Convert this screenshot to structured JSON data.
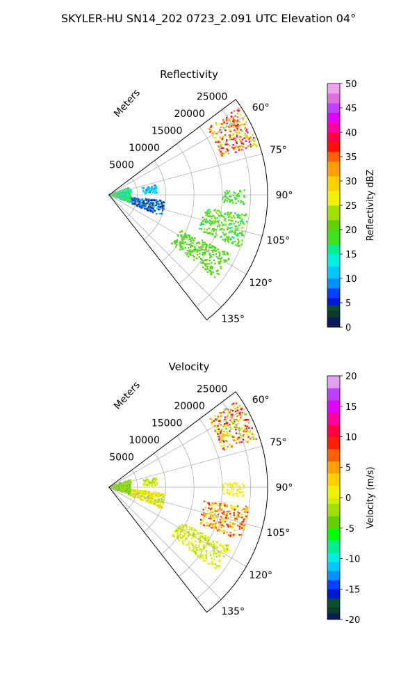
{
  "figure_title": "SKYLER-HU  SN14_202  0723_2.091 UTC Elevation 04°",
  "chart_data": [
    {
      "type": "polar-sector-heatmap",
      "title": "Reflectivity",
      "range_label": "Meters",
      "range_ticks": [
        5000,
        10000,
        15000,
        20000,
        25000
      ],
      "range_max": 28000,
      "azimuth_range_deg": [
        53,
        142
      ],
      "azimuth_ticks": [
        "60°",
        "75°",
        "90°",
        "105°",
        "120°",
        "135°"
      ],
      "azimuth_tick_values": [
        60,
        75,
        90,
        105,
        120,
        135
      ],
      "grid": true,
      "colorbar": {
        "label": "Reflectivity dBZ",
        "min": 0,
        "max": 50,
        "ticks": [
          "0",
          "5",
          "10",
          "15",
          "20",
          "25",
          "30",
          "35",
          "40",
          "45",
          "50"
        ]
      },
      "echo_regions": [
        {
          "az": [
            56,
            72
          ],
          "r": [
            21000,
            27500
          ],
          "value_range": [
            22,
            44
          ]
        },
        {
          "az": [
            70,
            110
          ],
          "r": [
            0,
            4000
          ],
          "value_range": [
            12,
            20
          ]
        },
        {
          "az": [
            78,
            88
          ],
          "r": [
            6000,
            8500
          ],
          "value_range": [
            8,
            15
          ]
        },
        {
          "az": [
            96,
            112
          ],
          "r": [
            4000,
            10000
          ],
          "value_range": [
            2,
            12
          ]
        },
        {
          "az": [
            88,
            94
          ],
          "r": [
            20000,
            24000
          ],
          "value_range": [
            18,
            20
          ]
        },
        {
          "az": [
            98,
            112
          ],
          "r": [
            17000,
            25000
          ],
          "value_range": [
            15,
            24
          ]
        },
        {
          "az": [
            116,
            128
          ],
          "r": [
            14000,
            24000
          ],
          "value_range": [
            18,
            22
          ]
        }
      ]
    },
    {
      "type": "polar-sector-heatmap",
      "title": "Velocity",
      "range_label": "Meters",
      "range_ticks": [
        5000,
        10000,
        15000,
        20000,
        25000
      ],
      "range_max": 28000,
      "azimuth_range_deg": [
        53,
        142
      ],
      "azimuth_ticks": [
        "60°",
        "75°",
        "90°",
        "105°",
        "120°",
        "135°"
      ],
      "azimuth_tick_values": [
        60,
        75,
        90,
        105,
        120,
        135
      ],
      "grid": true,
      "colorbar": {
        "label": "Velocity (m/s)",
        "min": -20,
        "max": 20,
        "ticks": [
          "-20",
          "-15",
          "-10",
          "-5",
          "0",
          "5",
          "10",
          "15",
          "20"
        ]
      },
      "echo_regions": [
        {
          "az": [
            56,
            72
          ],
          "r": [
            21000,
            27500
          ],
          "value_range": [
            -4,
            12
          ]
        },
        {
          "az": [
            70,
            110
          ],
          "r": [
            0,
            4000
          ],
          "value_range": [
            -4,
            -2
          ]
        },
        {
          "az": [
            78,
            88
          ],
          "r": [
            6000,
            8500
          ],
          "value_range": [
            -3,
            1
          ]
        },
        {
          "az": [
            96,
            112
          ],
          "r": [
            4000,
            10000
          ],
          "value_range": [
            -3,
            4
          ]
        },
        {
          "az": [
            88,
            94
          ],
          "r": [
            20000,
            24000
          ],
          "value_range": [
            0,
            2
          ]
        },
        {
          "az": [
            98,
            112
          ],
          "r": [
            17000,
            25000
          ],
          "value_range": [
            0,
            10
          ]
        },
        {
          "az": [
            116,
            128
          ],
          "r": [
            14000,
            24000
          ],
          "value_range": [
            -2,
            2
          ]
        }
      ]
    }
  ]
}
